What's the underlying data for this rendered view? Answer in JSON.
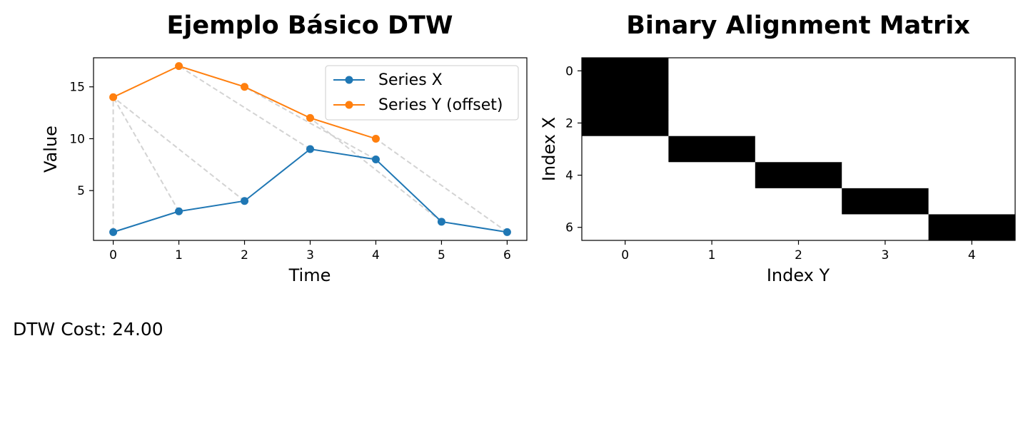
{
  "chart_data": [
    {
      "type": "line",
      "title": "Ejemplo Básico DTW",
      "xlabel": "Time",
      "ylabel": "Value",
      "xlim": [
        -0.3,
        6.3
      ],
      "ylim": [
        0.2,
        17.8
      ],
      "xticks": [
        0,
        1,
        2,
        3,
        4,
        5,
        6
      ],
      "yticks": [
        5,
        10,
        15
      ],
      "grid": false,
      "legend": "top-right",
      "series": [
        {
          "name": "Series X",
          "color": "#1f77b4",
          "x": [
            0,
            1,
            2,
            3,
            4,
            5,
            6
          ],
          "y": [
            1,
            3,
            4,
            9,
            8,
            2,
            1
          ]
        },
        {
          "name": "Series Y (offset)",
          "color": "#ff7f0e",
          "x": [
            0,
            1,
            2,
            3,
            4
          ],
          "y": [
            14,
            17,
            15,
            12,
            10
          ]
        }
      ],
      "alignment_lines": {
        "color": "#d3d3d3",
        "pairs": [
          [
            0,
            0
          ],
          [
            1,
            0
          ],
          [
            2,
            0
          ],
          [
            3,
            1
          ],
          [
            4,
            2
          ],
          [
            5,
            3
          ],
          [
            6,
            4
          ]
        ]
      }
    },
    {
      "type": "heatmap",
      "title": "Binary Alignment Matrix",
      "xlabel": "Index Y",
      "ylabel": "Index X",
      "rows": 7,
      "cols": 5,
      "xticks": [
        0,
        1,
        2,
        3,
        4
      ],
      "yticks": [
        0,
        2,
        4,
        6
      ],
      "colors": {
        "on": "#000000",
        "off": "#ffffff"
      },
      "matrix": [
        [
          1,
          0,
          0,
          0,
          0
        ],
        [
          1,
          0,
          0,
          0,
          0
        ],
        [
          1,
          0,
          0,
          0,
          0
        ],
        [
          0,
          1,
          0,
          0,
          0
        ],
        [
          0,
          0,
          1,
          0,
          0
        ],
        [
          0,
          0,
          0,
          1,
          0
        ],
        [
          0,
          0,
          0,
          0,
          1
        ]
      ]
    }
  ],
  "cost": {
    "label": "DTW Cost: 24.00"
  }
}
